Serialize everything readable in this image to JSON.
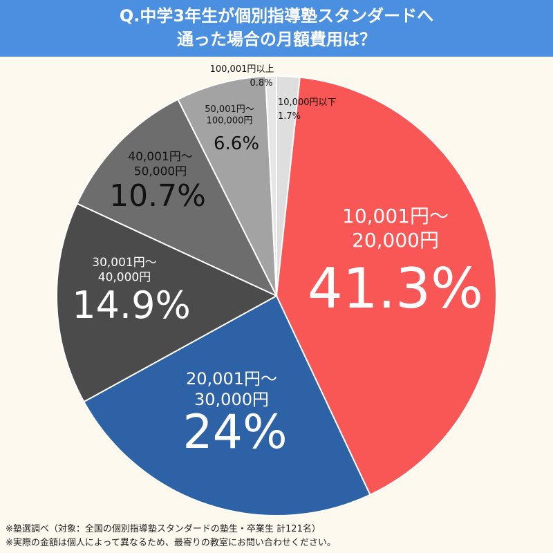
{
  "title_lines": [
    "Q.中学3年生が個別指導塾スタンダードへ",
    "通った場合の月額費用は？"
  ],
  "chart_data": {
    "type": "pie",
    "title": "Q.中学3年生が個別指導塾スタンダードへ通った場合の月額費用は？",
    "start": "12 o'clock, clockwise",
    "slices": [
      {
        "label": "10,000円以下",
        "value": 1.7,
        "display": "1.7%",
        "color": "#dedede",
        "text_color": "#111"
      },
      {
        "label": "10,001円〜\n20,000円",
        "value": 41.3,
        "display": "41.3%",
        "color": "#f95656",
        "text_color": "#fff"
      },
      {
        "label": "20,001円〜\n30,000円",
        "value": 24,
        "display": "24%",
        "color": "#2e62a6",
        "text_color": "#fff"
      },
      {
        "label": "30,001円〜\n40,000円",
        "value": 14.9,
        "display": "14.9%",
        "color": "#4b4b4b",
        "text_color": "#fff"
      },
      {
        "label": "40,001円〜\n50,000円",
        "value": 10.7,
        "display": "10.7%",
        "color": "#6d6d6d",
        "text_color": "#111"
      },
      {
        "label": "50,001円〜\n100,000円",
        "value": 6.6,
        "display": "6.6%",
        "color": "#a3a3a3",
        "text_color": "#111"
      },
      {
        "label": "100,001円以上",
        "value": 0.8,
        "display": "0.8%",
        "color": "#e6e6e6",
        "text_color": "#111"
      }
    ]
  },
  "footnotes": [
    "※塾選調べ（対象：全国の個別指導塾スタンダードの塾生・卒業生 計121名）",
    "※実際の金額は個人によって異なるため、最寄りの教室にお問い合わせください。"
  ]
}
